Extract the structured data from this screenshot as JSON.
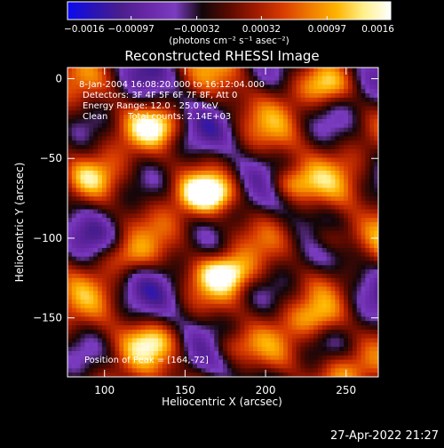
{
  "chart_data": {
    "type": "heatmap",
    "title": "Reconstructed RHESSI Image",
    "xlabel": "Heliocentric X (arcsec)",
    "ylabel": "Heliocentric Y (arcsec)",
    "xlim": [
      77,
      270
    ],
    "ylim": [
      -187,
      7
    ],
    "xticks": [
      {
        "value": 100,
        "label": "100"
      },
      {
        "value": 150,
        "label": "150"
      },
      {
        "value": 200,
        "label": "200"
      },
      {
        "value": 250,
        "label": "250"
      }
    ],
    "yticks": [
      {
        "value": 0,
        "label": "0"
      },
      {
        "value": -50,
        "label": "−50"
      },
      {
        "value": -100,
        "label": "−100"
      },
      {
        "value": -150,
        "label": "−150"
      }
    ],
    "colorbar": {
      "min": -0.0016,
      "max": 0.0016,
      "ticks": [
        {
          "value": -0.0016,
          "label": "−0.0016"
        },
        {
          "value": -0.00097,
          "label": "−0.00097"
        },
        {
          "value": -0.00032,
          "label": "−0.00032"
        },
        {
          "value": 0.00032,
          "label": "0.00032"
        },
        {
          "value": 0.00097,
          "label": "0.00097"
        },
        {
          "value": 0.0016,
          "label": "0.0016"
        }
      ],
      "units": "(photons cm⁻² s⁻¹ asec⁻²)",
      "colors": [
        "#0a0af0",
        "#2a14b4",
        "#4b1e8c",
        "#6a28a8",
        "#7a3cc0",
        "#12060a",
        "#5a0a00",
        "#a01a00",
        "#d83c00",
        "#f07a00",
        "#ffb400",
        "#fff08c",
        "#ffffff"
      ]
    },
    "annotations": [
      "8-Jan-2004 16:08:20.000 to 16:12:04.000",
      "Detectors: 3F 4F 5F 6F 7F 8F, Att 0",
      "Energy Range: 12.0 - 25.0 keV",
      "Clean",
      "Total counts: 2.14E+03"
    ],
    "peak_label": "Position of Peak = [164,-72]",
    "peak": {
      "x": 164,
      "y": -72
    },
    "sources": [
      {
        "x": 164,
        "y": -72,
        "amp": 0.0016
      },
      {
        "x": 175,
        "y": -122,
        "amp": 0.0014
      },
      {
        "x": 215,
        "y": -66,
        "amp": 0.0011
      },
      {
        "x": 132,
        "y": -30,
        "amp": 0.0011
      },
      {
        "x": 238,
        "y": -5,
        "amp": 0.0009
      },
      {
        "x": 240,
        "y": -100,
        "amp": 0.001
      },
      {
        "x": 232,
        "y": -150,
        "amp": 0.0007
      },
      {
        "x": 113,
        "y": -112,
        "amp": 0.0009
      },
      {
        "x": 130,
        "y": -165,
        "amp": 0.0007
      },
      {
        "x": 178,
        "y": -168,
        "amp": 0.0008
      },
      {
        "x": 248,
        "y": -182,
        "amp": 0.0006
      },
      {
        "x": 90,
        "y": -62,
        "amp": 0.0006
      }
    ]
  },
  "timestamp": "27-Apr-2022 21:27"
}
